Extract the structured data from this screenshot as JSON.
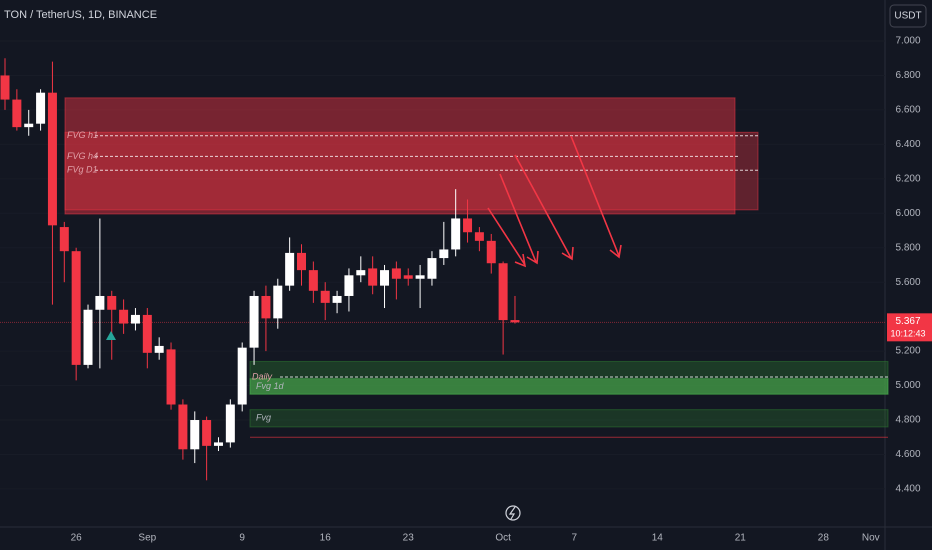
{
  "chart_data": {
    "type": "candlestick",
    "title": "TON / TetherUS, 1D, BINANCE",
    "currency": "USDT",
    "last_price": 5.367,
    "countdown": "10:12:43",
    "categories": [
      null,
      null,
      null,
      null,
      null,
      null,
      "26",
      null,
      null,
      null,
      null,
      null,
      "Sep",
      null,
      null,
      null,
      null,
      null,
      null,
      null,
      "9",
      null,
      null,
      null,
      null,
      null,
      null,
      "16",
      null,
      null,
      null,
      null,
      null,
      null,
      "23",
      null,
      null,
      null,
      null,
      null,
      null,
      null,
      "Oct",
      null,
      null,
      null,
      null,
      null,
      "7",
      null,
      null,
      null,
      null,
      null,
      null,
      "14",
      null,
      null,
      null,
      null,
      null,
      null,
      "21",
      null,
      null,
      null,
      null,
      null,
      null,
      "28",
      null,
      null,
      null,
      "Nov"
    ],
    "open": [
      6.8,
      6.66,
      6.5,
      6.52,
      6.7,
      5.92,
      5.78,
      5.12,
      5.44,
      5.52,
      5.44,
      5.36,
      5.41,
      5.19,
      5.21,
      4.89,
      4.63,
      4.8,
      4.65,
      4.67,
      4.89,
      5.22,
      5.52,
      5.39,
      5.58,
      5.77,
      5.67,
      5.55,
      5.48,
      5.52,
      5.64,
      5.68,
      5.58,
      5.68,
      5.64,
      5.62,
      5.62,
      5.74,
      5.79,
      5.97,
      5.89,
      5.84,
      5.71,
      5.38,
      null,
      null,
      null,
      null,
      null,
      null,
      null,
      null,
      null,
      null,
      null,
      null,
      null,
      null,
      null,
      null,
      null,
      null,
      null,
      null,
      null,
      null,
      null,
      null,
      null,
      null,
      null,
      null,
      null,
      null
    ],
    "high": [
      6.9,
      6.72,
      6.6,
      6.72,
      6.88,
      5.95,
      5.8,
      5.47,
      5.97,
      5.55,
      5.5,
      5.45,
      5.45,
      5.28,
      5.25,
      4.92,
      4.85,
      4.82,
      4.7,
      4.92,
      5.25,
      5.55,
      5.58,
      5.62,
      5.86,
      5.82,
      5.72,
      5.6,
      5.55,
      5.68,
      5.75,
      5.75,
      5.7,
      5.72,
      5.68,
      5.7,
      5.78,
      5.95,
      6.14,
      6.08,
      5.92,
      5.88,
      5.72,
      5.52,
      null,
      null,
      null,
      null,
      null,
      null,
      null,
      null,
      null,
      null,
      null,
      null,
      null,
      null,
      null,
      null,
      null,
      null,
      null,
      null,
      null,
      null,
      null,
      null,
      null,
      null,
      null,
      null,
      null,
      null
    ],
    "low": [
      6.6,
      6.48,
      6.45,
      6.48,
      5.47,
      5.6,
      5.03,
      5.1,
      5.1,
      5.15,
      5.3,
      5.32,
      5.1,
      5.15,
      4.86,
      4.57,
      4.55,
      4.45,
      4.62,
      4.64,
      4.85,
      5.12,
      5.2,
      5.33,
      5.55,
      5.58,
      5.48,
      5.38,
      5.42,
      5.43,
      5.6,
      5.53,
      5.45,
      5.5,
      5.58,
      5.45,
      5.58,
      5.7,
      5.75,
      5.83,
      5.78,
      5.65,
      5.18,
      5.36,
      null,
      null,
      null,
      null,
      null,
      null,
      null,
      null,
      null,
      null,
      null,
      null,
      null,
      null,
      null,
      null,
      null,
      null,
      null,
      null,
      null,
      null,
      null,
      null,
      null,
      null,
      null,
      null,
      null,
      null
    ],
    "close": [
      6.66,
      6.5,
      6.52,
      6.7,
      5.93,
      5.78,
      5.12,
      5.44,
      5.52,
      5.44,
      5.36,
      5.41,
      5.19,
      5.23,
      4.89,
      4.63,
      4.8,
      4.65,
      4.67,
      4.89,
      5.22,
      5.52,
      5.39,
      5.58,
      5.77,
      5.67,
      5.55,
      5.48,
      5.52,
      5.64,
      5.67,
      5.58,
      5.67,
      5.62,
      5.62,
      5.64,
      5.74,
      5.79,
      5.97,
      5.89,
      5.84,
      5.71,
      5.38,
      5.367,
      null,
      null,
      null,
      null,
      null,
      null,
      null,
      null,
      null,
      null,
      null,
      null,
      null,
      null,
      null,
      null,
      null,
      null,
      null,
      null,
      null,
      null,
      null,
      null,
      null,
      null,
      null,
      null,
      null,
      null
    ],
    "up_color": "#ffffff",
    "down_color": "#f23645",
    "ylim": [
      4.179,
      7.238
    ],
    "yticks": [
      {
        "value": 4.4,
        "label": "4.400"
      },
      {
        "value": 4.6,
        "label": "4.600"
      },
      {
        "value": 4.8,
        "label": "4.800"
      },
      {
        "value": 5.0,
        "label": "5.000"
      },
      {
        "value": 5.2,
        "label": "5.200"
      },
      {
        "value": 5.6,
        "label": "5.600"
      },
      {
        "value": 5.8,
        "label": "5.800"
      },
      {
        "value": 6.0,
        "label": "6.000"
      },
      {
        "value": 6.2,
        "label": "6.200"
      },
      {
        "value": 6.4,
        "label": "6.400"
      },
      {
        "value": 6.6,
        "label": "6.600"
      },
      {
        "value": 6.8,
        "label": "6.800"
      },
      {
        "value": 7.0,
        "label": "7.000"
      }
    ],
    "zones": [
      {
        "low": 5.996,
        "high": 6.67,
        "color": "#f23645"
      },
      {
        "low": 6.02,
        "high": 6.47,
        "color": "#f23645"
      },
      {
        "low": 4.95,
        "high": 5.14,
        "color": "#2e7d32"
      },
      {
        "low": 4.95,
        "high": 5.04,
        "color": "#4caf50",
        "label": "Fvg 1d"
      },
      {
        "low": 4.76,
        "high": 4.86,
        "color": "#2e7d32",
        "label": "Fvg"
      }
    ],
    "levels": [
      {
        "label": "FVG h1",
        "value": 6.45
      },
      {
        "label": "FVG h4",
        "value": 6.33
      },
      {
        "label": "FVg D1",
        "value": 6.25
      },
      {
        "label": "Daily",
        "value": 5.05
      }
    ],
    "support_line": 4.7
  }
}
